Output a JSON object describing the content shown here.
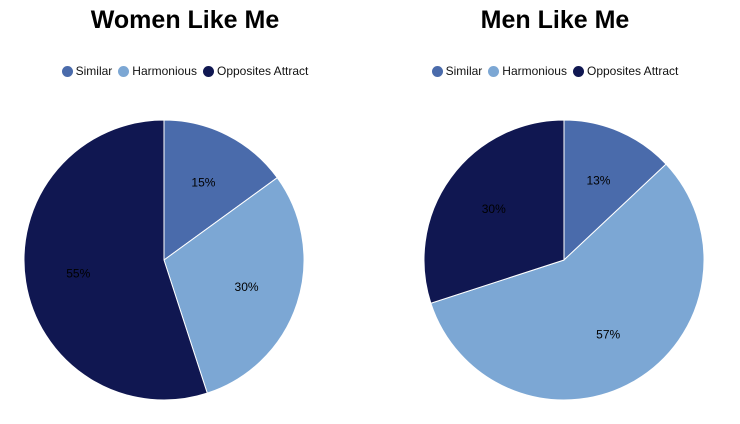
{
  "chart_data": [
    {
      "type": "pie",
      "title": "Women Like Me",
      "categories": [
        "Similar",
        "Harmonious",
        "Opposites Attract"
      ],
      "values": [
        15,
        30,
        55
      ],
      "labels": [
        "15%",
        "30%",
        "55%"
      ],
      "colors": [
        "#4a6bab",
        "#7ca7d4",
        "#101751"
      ],
      "legend": "top"
    },
    {
      "type": "pie",
      "title": "Men Like Me",
      "categories": [
        "Similar",
        "Harmonious",
        "Opposites Attract"
      ],
      "values": [
        13,
        57,
        30
      ],
      "labels": [
        "13%",
        "57%",
        "30%"
      ],
      "colors": [
        "#4a6bab",
        "#7ca7d4",
        "#101751"
      ],
      "legend": "top"
    }
  ]
}
